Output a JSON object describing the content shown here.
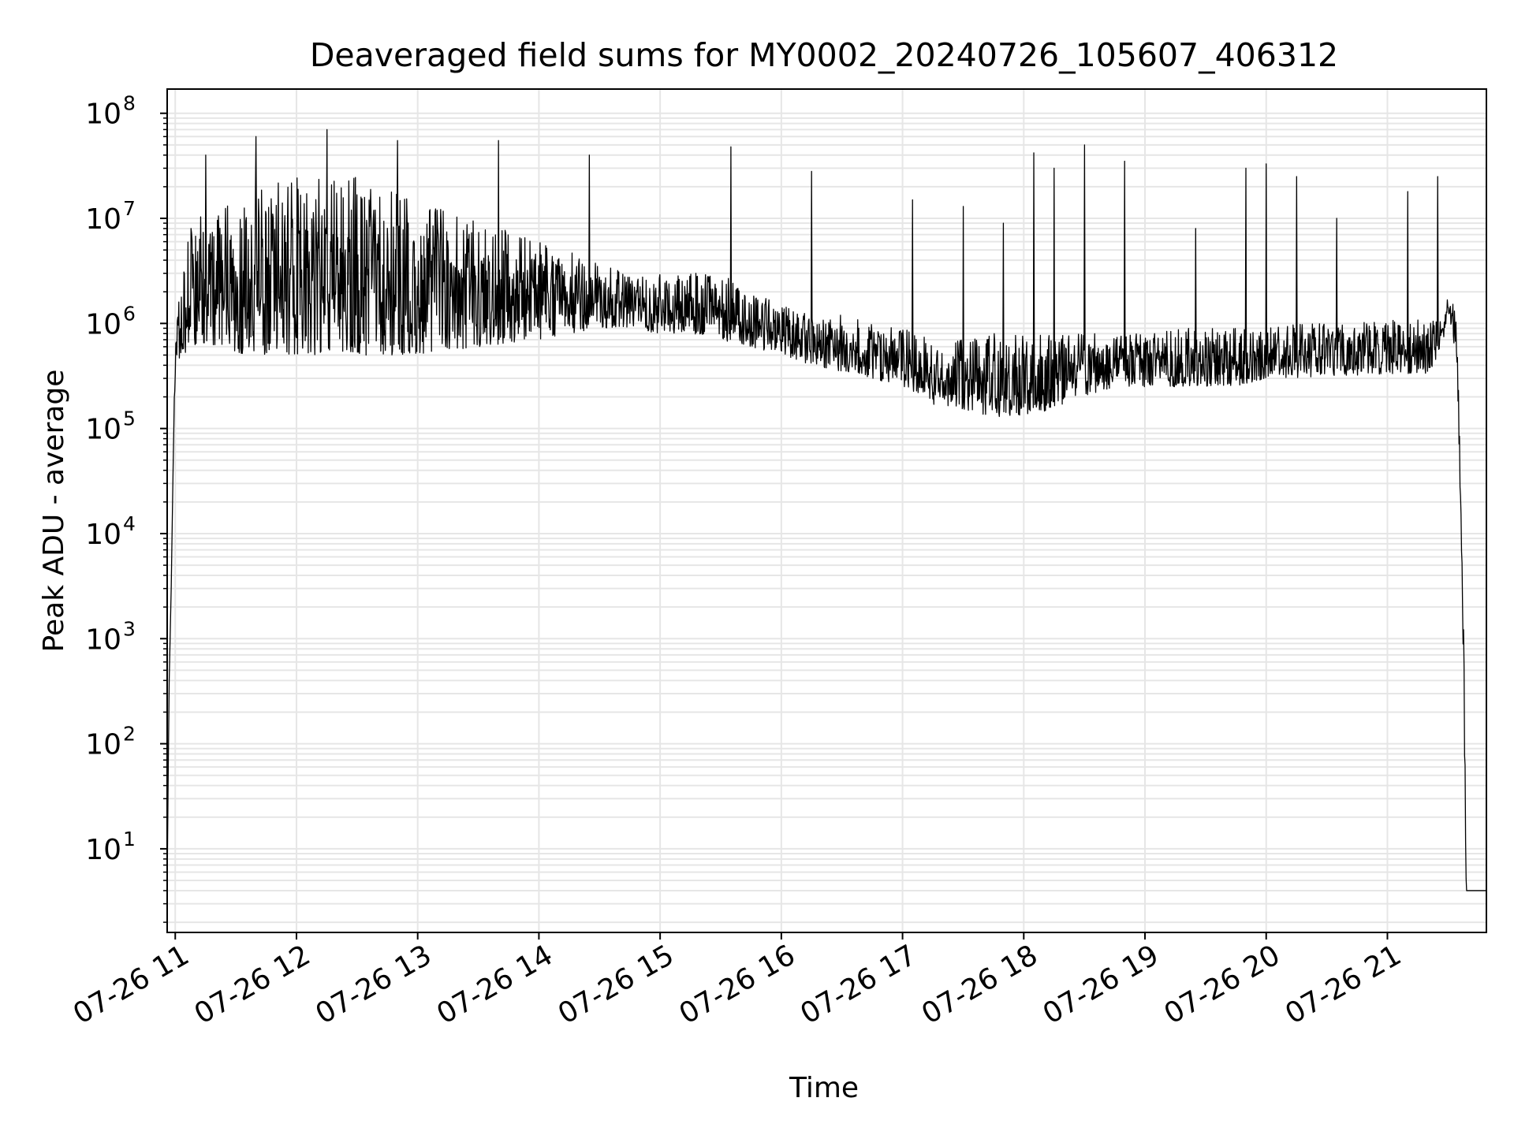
{
  "chart_data": {
    "type": "line",
    "title": "Deaveraged field sums for MY0002_20240726_105607_406312",
    "xlabel": "Time",
    "ylabel": "Peak ADU - average",
    "yscale": "log",
    "ylim": [
      1.6,
      170000000
    ],
    "xlim": [
      "2024-07-26T10:56:00",
      "2024-07-26T21:49:00"
    ],
    "grid": true,
    "line_color": "#000000",
    "grid_color": "#e6e6e6",
    "x_ticks": [
      {
        "t": "2024-07-26T11:00:00",
        "label": "07-26 11"
      },
      {
        "t": "2024-07-26T12:00:00",
        "label": "07-26 12"
      },
      {
        "t": "2024-07-26T13:00:00",
        "label": "07-26 13"
      },
      {
        "t": "2024-07-26T14:00:00",
        "label": "07-26 14"
      },
      {
        "t": "2024-07-26T15:00:00",
        "label": "07-26 15"
      },
      {
        "t": "2024-07-26T16:00:00",
        "label": "07-26 16"
      },
      {
        "t": "2024-07-26T17:00:00",
        "label": "07-26 17"
      },
      {
        "t": "2024-07-26T18:00:00",
        "label": "07-26 18"
      },
      {
        "t": "2024-07-26T19:00:00",
        "label": "07-26 19"
      },
      {
        "t": "2024-07-26T20:00:00",
        "label": "07-26 20"
      },
      {
        "t": "2024-07-26T21:00:00",
        "label": "07-26 21"
      }
    ],
    "y_ticks": [
      {
        "value": 10,
        "base": "10",
        "exp": "1"
      },
      {
        "value": 100,
        "base": "10",
        "exp": "2"
      },
      {
        "value": 1000,
        "base": "10",
        "exp": "3"
      },
      {
        "value": 10000,
        "base": "10",
        "exp": "4"
      },
      {
        "value": 100000,
        "base": "10",
        "exp": "5"
      },
      {
        "value": 1000000,
        "base": "10",
        "exp": "6"
      },
      {
        "value": 10000000,
        "base": "10",
        "exp": "7"
      },
      {
        "value": 100000000,
        "base": "10",
        "exp": "8"
      }
    ],
    "envelope": {
      "t": [
        "2024-07-26T10:56:00",
        "2024-07-26T10:56:30",
        "2024-07-26T10:57:00",
        "2024-07-26T10:58:00",
        "2024-07-26T10:59:00",
        "2024-07-26T11:00:00",
        "2024-07-26T11:03:00",
        "2024-07-26T11:06:00",
        "2024-07-26T11:10:00",
        "2024-07-26T11:20:00",
        "2024-07-26T11:30:00",
        "2024-07-26T11:45:00",
        "2024-07-26T12:00:00",
        "2024-07-26T12:15:00",
        "2024-07-26T12:30:00",
        "2024-07-26T12:45:00",
        "2024-07-26T13:00:00",
        "2024-07-26T13:15:00",
        "2024-07-26T13:30:00",
        "2024-07-26T13:45:00",
        "2024-07-26T14:00:00",
        "2024-07-26T14:15:00",
        "2024-07-26T14:30:00",
        "2024-07-26T14:45:00",
        "2024-07-26T15:00:00",
        "2024-07-26T15:15:00",
        "2024-07-26T15:30:00",
        "2024-07-26T15:45:00",
        "2024-07-26T16:00:00",
        "2024-07-26T16:15:00",
        "2024-07-26T16:30:00",
        "2024-07-26T16:45:00",
        "2024-07-26T17:00:00",
        "2024-07-26T17:15:00",
        "2024-07-26T17:30:00",
        "2024-07-26T17:45:00",
        "2024-07-26T18:00:00",
        "2024-07-26T18:15:00",
        "2024-07-26T18:30:00",
        "2024-07-26T18:45:00",
        "2024-07-26T19:00:00",
        "2024-07-26T19:15:00",
        "2024-07-26T19:30:00",
        "2024-07-26T19:45:00",
        "2024-07-26T20:00:00",
        "2024-07-26T20:15:00",
        "2024-07-26T20:30:00",
        "2024-07-26T20:45:00",
        "2024-07-26T21:00:00",
        "2024-07-26T21:15:00",
        "2024-07-26T21:25:00",
        "2024-07-26T21:30:00",
        "2024-07-26T21:34:00",
        "2024-07-26T21:36:00",
        "2024-07-26T21:37:00",
        "2024-07-26T21:38:00",
        "2024-07-26T21:39:00",
        "2024-07-26T21:40:00",
        "2024-07-26T21:41:00",
        "2024-07-26T21:42:00",
        "2024-07-26T21:49:00"
      ],
      "low": [
        4,
        50,
        400,
        3000,
        50000,
        300000,
        500000,
        500000,
        600000,
        600000,
        500000,
        500000,
        500000,
        500000,
        500000,
        500000,
        500000,
        550000,
        600000,
        650000,
        700000,
        800000,
        900000,
        900000,
        800000,
        800000,
        700000,
        600000,
        500000,
        400000,
        350000,
        300000,
        250000,
        170000,
        150000,
        130000,
        130000,
        150000,
        200000,
        250000,
        250000,
        250000,
        250000,
        250000,
        300000,
        300000,
        320000,
        320000,
        330000,
        330000,
        340000,
        1300000,
        500000,
        20000,
        3000,
        100,
        4,
        4,
        4,
        4,
        4
      ],
      "high": [
        4,
        50,
        400,
        3000,
        50000,
        1000000,
        3000000,
        8000000,
        10000000,
        12000000,
        15000000,
        20000000,
        25000000,
        25000000,
        25000000,
        20000000,
        15000000,
        12000000,
        10000000,
        8000000,
        6000000,
        5000000,
        4000000,
        3000000,
        3000000,
        3000000,
        3000000,
        2000000,
        1500000,
        1200000,
        1200000,
        1000000,
        900000,
        700000,
        700000,
        800000,
        800000,
        800000,
        800000,
        800000,
        800000,
        900000,
        900000,
        900000,
        900000,
        1000000,
        1000000,
        1000000,
        1100000,
        1100000,
        1200000,
        1800000,
        1500000,
        100000,
        8000,
        2000,
        4,
        4,
        4,
        4,
        4
      ]
    },
    "spikes": [
      {
        "t": "2024-07-26T11:15:00",
        "value": 40000000
      },
      {
        "t": "2024-07-26T11:40:00",
        "value": 60000000
      },
      {
        "t": "2024-07-26T12:15:00",
        "value": 70000000
      },
      {
        "t": "2024-07-26T12:50:00",
        "value": 55000000
      },
      {
        "t": "2024-07-26T13:40:00",
        "value": 55000000
      },
      {
        "t": "2024-07-26T14:25:00",
        "value": 40000000
      },
      {
        "t": "2024-07-26T15:35:00",
        "value": 48000000
      },
      {
        "t": "2024-07-26T16:15:00",
        "value": 28000000
      },
      {
        "t": "2024-07-26T17:05:00",
        "value": 15000000
      },
      {
        "t": "2024-07-26T17:30:00",
        "value": 13000000
      },
      {
        "t": "2024-07-26T17:50:00",
        "value": 9000000
      },
      {
        "t": "2024-07-26T18:05:00",
        "value": 42000000
      },
      {
        "t": "2024-07-26T18:15:00",
        "value": 30000000
      },
      {
        "t": "2024-07-26T18:30:00",
        "value": 50000000
      },
      {
        "t": "2024-07-26T18:50:00",
        "value": 35000000
      },
      {
        "t": "2024-07-26T19:25:00",
        "value": 8000000
      },
      {
        "t": "2024-07-26T19:50:00",
        "value": 30000000
      },
      {
        "t": "2024-07-26T20:00:00",
        "value": 33000000
      },
      {
        "t": "2024-07-26T20:15:00",
        "value": 25000000
      },
      {
        "t": "2024-07-26T20:35:00",
        "value": 10000000
      },
      {
        "t": "2024-07-26T21:10:00",
        "value": 18000000
      },
      {
        "t": "2024-07-26T21:25:00",
        "value": 25000000
      }
    ]
  }
}
